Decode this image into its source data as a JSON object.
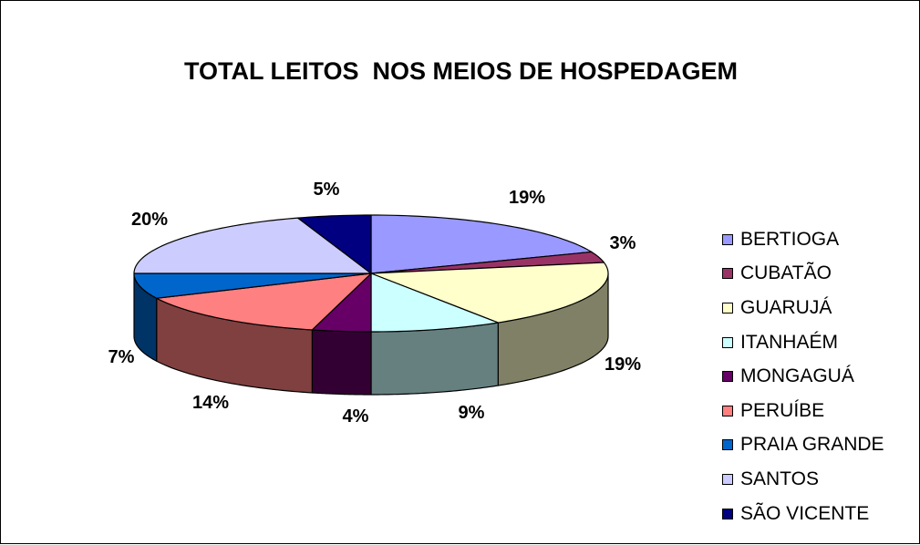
{
  "chart_data": {
    "type": "pie",
    "title": "TOTAL LEITOS  NOS MEIOS DE HOSPEDAGEM",
    "legend_position": "right",
    "slices": [
      {
        "name": "BERTIOGA",
        "value": 19,
        "label": "19%",
        "color": "#9999ff",
        "side_color": "#6b6bb3"
      },
      {
        "name": "CUBATÃO",
        "value": 3,
        "label": "3%",
        "color": "#993366",
        "side_color": "#6b2447"
      },
      {
        "name": "GUARUJÁ",
        "value": 19,
        "label": "19%",
        "color": "#ffffcc",
        "side_color": "#808066"
      },
      {
        "name": "ITANHAÉM",
        "value": 9,
        "label": "9%",
        "color": "#ccffff",
        "side_color": "#668080"
      },
      {
        "name": "MONGAGUÁ",
        "value": 4,
        "label": "4%",
        "color": "#660066",
        "side_color": "#330033"
      },
      {
        "name": "PERUÍBE",
        "value": 14,
        "label": "14%",
        "color": "#ff8080",
        "side_color": "#804040"
      },
      {
        "name": "PRAIA GRANDE",
        "value": 7,
        "label": "7%",
        "color": "#0066cc",
        "side_color": "#003366"
      },
      {
        "name": "SANTOS",
        "value": 20,
        "label": "20%",
        "color": "#ccccff",
        "side_color": "#8f8fb3"
      },
      {
        "name": "SÃO VICENTE",
        "value": 5,
        "label": "5%",
        "color": "#000080",
        "side_color": "#000040"
      }
    ]
  }
}
